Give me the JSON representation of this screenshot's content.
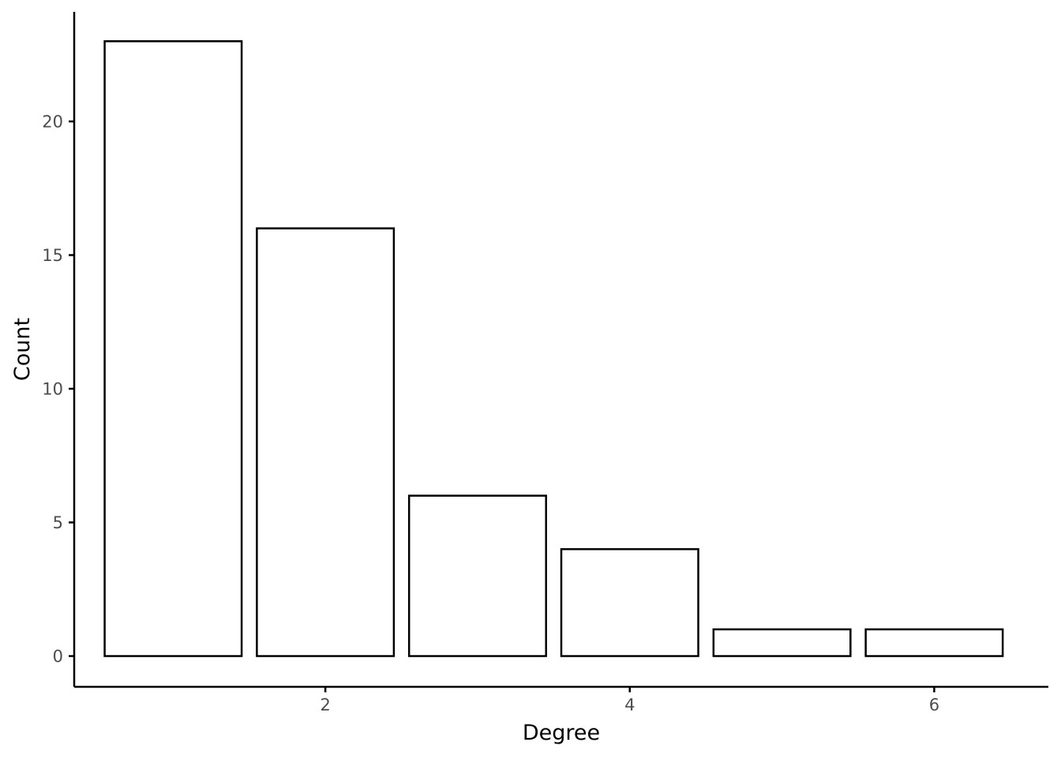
{
  "chart_data": {
    "type": "bar",
    "x": [
      1,
      2,
      3,
      4,
      5,
      6
    ],
    "values": [
      23,
      16,
      6,
      4,
      1,
      1
    ],
    "xlabel": "Degree",
    "ylabel": "Count",
    "xlim": [
      0.35,
      6.75
    ],
    "ylim": [
      -1.15,
      24.1
    ],
    "x_ticks": [
      2,
      4,
      6
    ],
    "y_ticks": [
      0,
      5,
      10,
      15,
      20
    ],
    "bar_fill": "#ffffff",
    "bar_outline": "#000000",
    "grid": false
  }
}
